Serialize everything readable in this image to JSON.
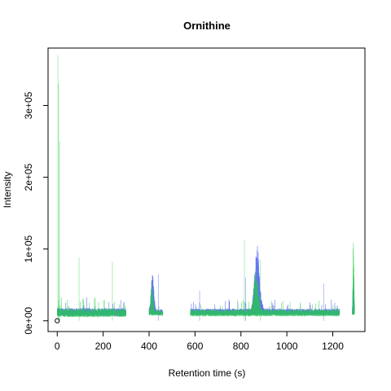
{
  "chart_data": {
    "type": "line",
    "title": "Ornithine",
    "xlabel": "Retention time (s)",
    "ylabel": "Intensity",
    "xlim": [
      -40,
      1340
    ],
    "ylim": [
      -15000,
      380000
    ],
    "x_ticks": [
      0,
      200,
      400,
      600,
      800,
      1000,
      1200
    ],
    "x_tick_labels": [
      "0",
      "200",
      "400",
      "600",
      "800",
      "1000",
      "1200"
    ],
    "y_ticks": [
      0,
      100000,
      200000,
      300000
    ],
    "y_tick_labels": [
      "0e+00",
      "1e+05",
      "2e+05",
      "3e+05"
    ],
    "grid": false,
    "legend": "none",
    "colors": {
      "blue": "#3344ee",
      "green": "#22cc44",
      "axis": "#000000",
      "marker": "#000000"
    },
    "series": [
      {
        "color": "blue",
        "segments": [
          {
            "x_range": [
              0,
              300
            ],
            "baseline": 12000,
            "noise": 6000
          },
          {
            "x_range": [
              400,
              460
            ],
            "baseline": 12000,
            "noise": 4000,
            "peak": {
              "x": 415,
              "height": 55000,
              "width": 8
            }
          },
          {
            "x_range": [
              580,
              1230
            ],
            "baseline": 12000,
            "noise": 5000,
            "peak": {
              "x": 870,
              "height": 92000,
              "width": 14
            }
          },
          {
            "x_range": [
              1285,
              1295
            ],
            "baseline": 12000,
            "noise": 3000,
            "peak": {
              "x": 1290,
              "height": 60000,
              "width": 3
            }
          }
        ],
        "spikes": [
          {
            "x": 440,
            "y": 65000
          },
          {
            "x": 620,
            "y": 42000
          },
          {
            "x": 820,
            "y": 60000
          },
          {
            "x": 1160,
            "y": 52000
          }
        ]
      },
      {
        "color": "green",
        "segments": [
          {
            "x_range": [
              0,
              300
            ],
            "baseline": 11000,
            "noise": 6000
          },
          {
            "x_range": [
              400,
              460
            ],
            "baseline": 11000,
            "noise": 4000,
            "peak": {
              "x": 412,
              "height": 40000,
              "width": 7
            }
          },
          {
            "x_range": [
              580,
              1230
            ],
            "baseline": 11000,
            "noise": 5000,
            "peak": {
              "x": 865,
              "height": 60000,
              "width": 12
            }
          },
          {
            "x_range": [
              1285,
              1295
            ],
            "baseline": 11000,
            "noise": 3000,
            "peak": {
              "x": 1290,
              "height": 125000,
              "width": 3
            }
          }
        ],
        "spikes": [
          {
            "x": 3,
            "y": 370000
          },
          {
            "x": 6,
            "y": 330000
          },
          {
            "x": 10,
            "y": 250000
          },
          {
            "x": 95,
            "y": 88000
          },
          {
            "x": 240,
            "y": 82000
          },
          {
            "x": 815,
            "y": 112000
          },
          {
            "x": 885,
            "y": 85000
          }
        ]
      }
    ],
    "markers": [
      {
        "x": 0,
        "y": 0,
        "shape": "open-circle"
      }
    ]
  }
}
